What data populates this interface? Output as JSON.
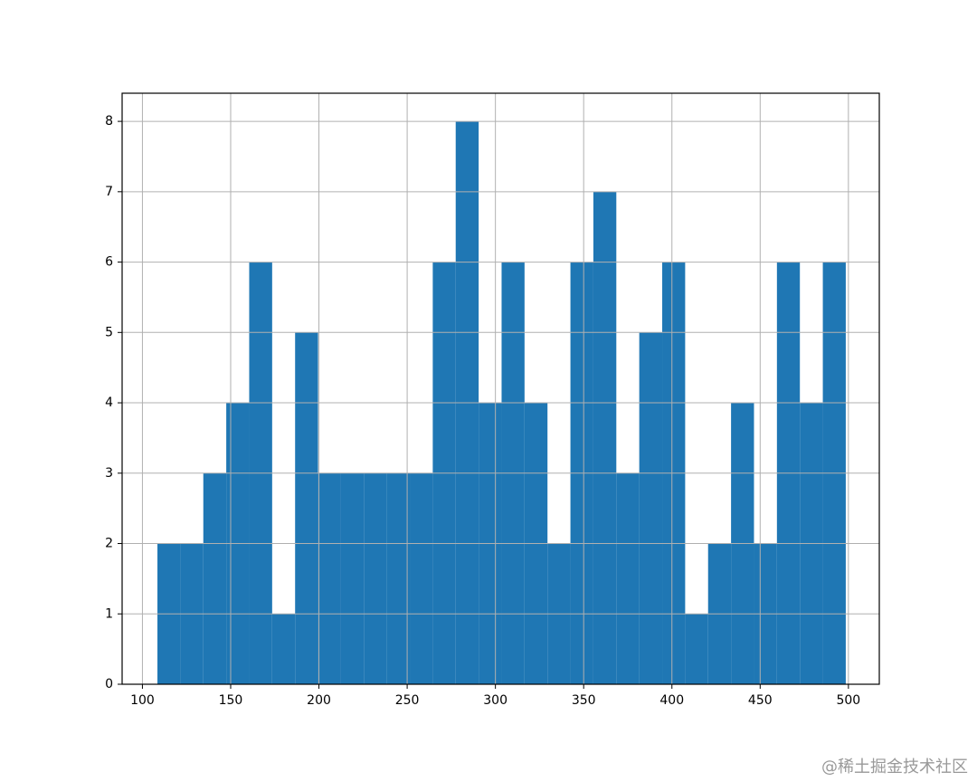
{
  "chart_data": {
    "type": "histogram",
    "bins": [
      108.5,
      121.5,
      134.5,
      147.5,
      160.5,
      173.5,
      186.5,
      199.5,
      212.5,
      225.5,
      238.5,
      251.5,
      264.5,
      277.5,
      290.5,
      303.5,
      316.5,
      329.5,
      342.5,
      355.5,
      368.5,
      381.5,
      394.5,
      407.5,
      420.5,
      433.5,
      446.5,
      459.5,
      472.5,
      485.5,
      498.5
    ],
    "values": [
      2,
      2,
      3,
      4,
      6,
      1,
      5,
      3,
      3,
      3,
      3,
      3,
      6,
      8,
      4,
      6,
      4,
      2,
      6,
      7,
      3,
      5,
      6,
      1,
      2,
      4,
      2,
      6,
      4,
      6
    ],
    "color": "#1f77b4",
    "xlim": [
      88.5,
      517.5
    ],
    "xticks": [
      100,
      150,
      200,
      250,
      300,
      350,
      400,
      450,
      500
    ],
    "ylim": [
      0,
      8.4
    ],
    "yticks": [
      0,
      1,
      2,
      3,
      4,
      5,
      6,
      7,
      8
    ],
    "grid": true
  },
  "watermark": "@稀土掘金技术社区"
}
